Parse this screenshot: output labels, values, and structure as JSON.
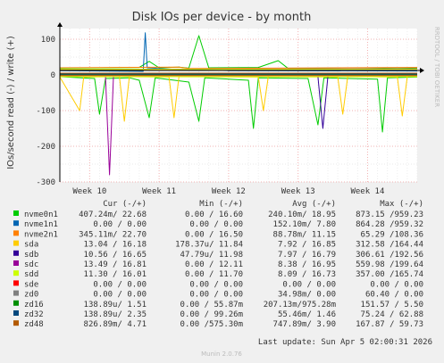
{
  "chart_data": {
    "type": "line",
    "title": "Disk IOs per device - by month",
    "ylabel": "IOs/second read (-) / write (+)",
    "ylim": [
      -300,
      130
    ],
    "yticks": [
      100,
      0,
      -100,
      -200,
      -300
    ],
    "xtick_labels": [
      "Week 10",
      "Week 11",
      "Week 12",
      "Week 13",
      "Week 14"
    ],
    "xlim": [
      0,
      36
    ],
    "xticks": [
      3,
      10,
      17,
      24,
      31
    ],
    "grid": true,
    "side_label": "RRDTOOL / TOBI OETIKER",
    "legend_headers": {
      "cur": "Cur (-/+)",
      "min": "Min (-/+)",
      "avg": "Avg (-/+)",
      "max": "Max (-/+)"
    },
    "series": [
      {
        "name": "nvme0n1",
        "color": "#00cc00",
        "cur": "407.24m/ 22.68",
        "min": "0.00 / 16.60",
        "avg": "240.10m/ 18.95",
        "max": "873.15 /959.23",
        "write": [
          [
            0,
            19
          ],
          [
            8,
            21
          ],
          [
            9,
            38
          ],
          [
            10,
            20
          ],
          [
            12,
            22
          ],
          [
            13,
            19
          ],
          [
            14,
            110
          ],
          [
            15,
            20
          ],
          [
            20,
            21
          ],
          [
            22,
            40
          ],
          [
            23,
            18
          ],
          [
            27,
            19
          ],
          [
            30,
            20
          ],
          [
            34,
            18
          ],
          [
            36,
            19
          ]
        ],
        "read": [
          [
            0,
            -5
          ],
          [
            3.5,
            -10
          ],
          [
            4,
            -110
          ],
          [
            4.6,
            -10
          ],
          [
            7,
            -8
          ],
          [
            8,
            -15
          ],
          [
            9,
            -120
          ],
          [
            9.6,
            -8
          ],
          [
            13,
            -20
          ],
          [
            14,
            -130
          ],
          [
            14.6,
            -8
          ],
          [
            19,
            -15
          ],
          [
            19.5,
            -150
          ],
          [
            20,
            -8
          ],
          [
            25,
            -10
          ],
          [
            26,
            -140
          ],
          [
            26.6,
            -8
          ],
          [
            32,
            -12
          ],
          [
            32.5,
            -160
          ],
          [
            33,
            -8
          ],
          [
            36,
            -6
          ]
        ]
      },
      {
        "name": "nvme1n1",
        "color": "#0066b3",
        "cur": "0.00 / 0.00",
        "min": "0.00 / 0.00",
        "avg": "152.10m/ 7.80",
        "max": "864.28 /959.32",
        "write": [
          [
            0,
            12
          ],
          [
            8.4,
            10
          ],
          [
            8.6,
            118
          ],
          [
            8.8,
            20
          ],
          [
            12,
            15
          ],
          [
            17,
            12
          ],
          [
            36,
            11
          ]
        ],
        "read": [
          [
            0,
            -2
          ],
          [
            36,
            -2
          ]
        ]
      },
      {
        "name": "nvme2n1",
        "color": "#ff8000",
        "cur": "345.11m/ 22.70",
        "min": "0.00 / 16.50",
        "avg": "88.78m/ 11.15",
        "max": "65.29 /108.36",
        "write": [
          [
            0,
            20
          ],
          [
            12,
            22
          ],
          [
            13,
            18
          ],
          [
            36,
            21
          ]
        ],
        "read": [
          [
            0,
            -4
          ],
          [
            36,
            -4
          ]
        ]
      },
      {
        "name": "sda",
        "color": "#ffcc00",
        "cur": "13.04 / 16.18",
        "min": "178.37u/ 11.84",
        "avg": "7.92 / 16.85",
        "max": "312.58 /164.44",
        "write": [
          [
            0,
            15
          ],
          [
            36,
            16
          ]
        ],
        "read": [
          [
            0,
            -6
          ],
          [
            2,
            -100
          ],
          [
            2.4,
            -6
          ],
          [
            6,
            -5
          ],
          [
            6.5,
            -130
          ],
          [
            7,
            -5
          ],
          [
            11,
            -6
          ],
          [
            11.5,
            -120
          ],
          [
            12,
            -5
          ],
          [
            20,
            -6
          ],
          [
            20.5,
            -100
          ],
          [
            21,
            -5
          ],
          [
            28,
            -6
          ],
          [
            28.5,
            -110
          ],
          [
            29,
            -5
          ],
          [
            34,
            -6
          ],
          [
            34.5,
            -115
          ],
          [
            35,
            -5
          ],
          [
            36,
            -5
          ]
        ]
      },
      {
        "name": "sdb",
        "color": "#330099",
        "cur": "10.56 / 16.65",
        "min": "47.79u/ 11.98",
        "avg": "7.97 / 16.79",
        "max": "306.61 /192.56",
        "write": [
          [
            0,
            16
          ],
          [
            36,
            16
          ]
        ],
        "read": [
          [
            0,
            -5
          ],
          [
            26,
            -5
          ],
          [
            26.5,
            -150
          ],
          [
            27,
            -5
          ],
          [
            36,
            -5
          ]
        ]
      },
      {
        "name": "sdc",
        "color": "#990099",
        "cur": "13.49 / 16.81",
        "min": "0.00 / 12.11",
        "avg": "8.38 / 16.95",
        "max": "559.98 /199.64",
        "write": [
          [
            0,
            16
          ],
          [
            36,
            17
          ]
        ],
        "read": [
          [
            0,
            -5
          ],
          [
            4.6,
            -5
          ],
          [
            5,
            -280
          ],
          [
            5.4,
            -5
          ],
          [
            36,
            -5
          ]
        ]
      },
      {
        "name": "sdd",
        "color": "#ccff00",
        "cur": "11.30 / 16.01",
        "min": "0.00 / 11.70",
        "avg": "8.09 / 16.73",
        "max": "357.00 /165.74",
        "write": [
          [
            0,
            16
          ],
          [
            36,
            16
          ]
        ],
        "read": [
          [
            0,
            -5
          ],
          [
            36,
            -5
          ]
        ]
      },
      {
        "name": "sde",
        "color": "#ff0000",
        "cur": "0.00 / 0.00",
        "min": "0.00 / 0.00",
        "avg": "0.00 / 0.00",
        "max": "0.00 / 0.00",
        "write": [
          [
            0,
            0
          ],
          [
            36,
            0
          ]
        ],
        "read": [
          [
            0,
            0
          ],
          [
            36,
            0
          ]
        ]
      },
      {
        "name": "zd0",
        "color": "#808080",
        "cur": "0.00 / 0.00",
        "min": "0.00 / 0.00",
        "avg": "34.98m/ 0.00",
        "max": "60.40 / 0.00",
        "write": [
          [
            0,
            0
          ],
          [
            36,
            0
          ]
        ],
        "read": [
          [
            0,
            -1
          ],
          [
            36,
            -1
          ]
        ]
      },
      {
        "name": "zd16",
        "color": "#008f00",
        "cur": "138.89u/ 1.51",
        "min": "0.00 / 55.87m",
        "avg": "207.13m/975.28m",
        "max": "151.57 / 5.50",
        "write": [
          [
            0,
            2
          ],
          [
            36,
            2
          ]
        ],
        "read": [
          [
            0,
            0
          ],
          [
            36,
            0
          ]
        ]
      },
      {
        "name": "zd32",
        "color": "#00487d",
        "cur": "138.89u/ 2.35",
        "min": "0.00 / 99.26m",
        "avg": "55.46m/ 1.46",
        "max": "75.24 / 62.88",
        "write": [
          [
            0,
            3
          ],
          [
            36,
            3
          ]
        ],
        "read": [
          [
            0,
            0
          ],
          [
            36,
            0
          ]
        ]
      },
      {
        "name": "zd48",
        "color": "#b35a00",
        "cur": "826.89m/ 4.71",
        "min": "0.00 /575.30m",
        "avg": "747.89m/ 3.90",
        "max": "167.87 / 59.73",
        "write": [
          [
            0,
            5
          ],
          [
            36,
            5
          ]
        ],
        "read": [
          [
            0,
            -1
          ],
          [
            36,
            -1
          ]
        ]
      }
    ],
    "last_update": "Last update: Sun Apr  5 02:00:31 2026",
    "footer": "Munin 2.0.76"
  }
}
